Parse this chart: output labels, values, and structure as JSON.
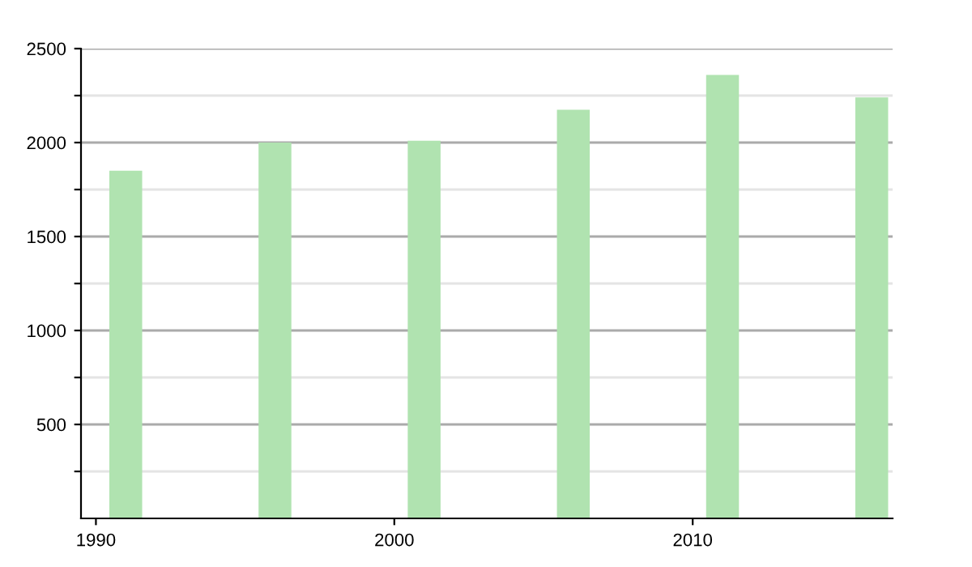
{
  "chart_data": {
    "type": "bar",
    "x": [
      1991,
      1996,
      2001,
      2006,
      2011,
      2016
    ],
    "values": [
      1850,
      2000,
      2010,
      2175,
      2360,
      2240
    ],
    "color": "#b0e3b0",
    "xlim": [
      1989.5,
      2016.7
    ],
    "xticks": [
      1990,
      2000,
      2010
    ],
    "ylim": [
      0,
      2500
    ],
    "yticks": [
      {
        "value": 250,
        "label": null
      },
      500,
      {
        "value": 750,
        "label": null
      },
      1000,
      {
        "value": 1250,
        "label": null
      },
      1500,
      {
        "value": 1750,
        "label": null
      },
      2000,
      {
        "value": 2250,
        "label": null
      },
      2500
    ],
    "grid": "y"
  }
}
